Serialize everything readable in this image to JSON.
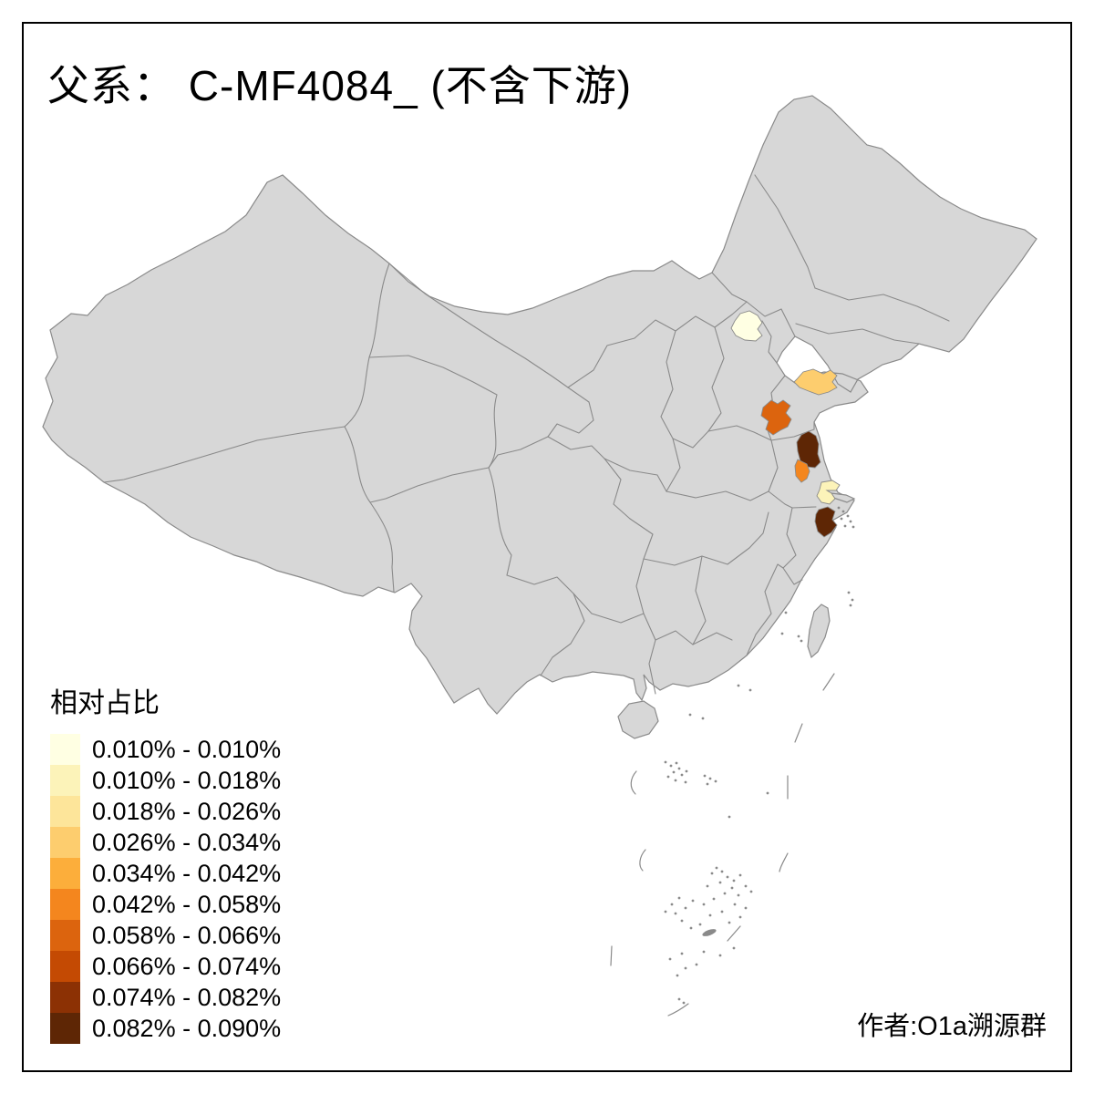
{
  "title": "父系： C-MF4084_ (不含下游)",
  "attribution": "作者:O1a溯源群",
  "legend": {
    "title": "相对占比",
    "items": [
      {
        "range": "0.010% - 0.010%",
        "color": "#FFFFE3"
      },
      {
        "range": "0.010% - 0.018%",
        "color": "#FCF3B9"
      },
      {
        "range": "0.018% - 0.026%",
        "color": "#FDE59A"
      },
      {
        "range": "0.026% - 0.034%",
        "color": "#FDCD6E"
      },
      {
        "range": "0.034% - 0.042%",
        "color": "#FCAE3B"
      },
      {
        "range": "0.042% - 0.058%",
        "color": "#F4861E"
      },
      {
        "range": "0.058% - 0.066%",
        "color": "#DC640E"
      },
      {
        "range": "0.066% - 0.074%",
        "color": "#C44A03"
      },
      {
        "range": "0.074% - 0.082%",
        "color": "#8C3104"
      },
      {
        "range": "0.082% - 0.090%",
        "color": "#5E2605"
      }
    ]
  },
  "map": {
    "base_fill": "#D7D7D7",
    "border_color": "#8A8A8A",
    "background": "#FFFFFF",
    "regions": [
      {
        "id": "beijing",
        "level": 1
      },
      {
        "id": "shandong-peninsula",
        "level": 4
      },
      {
        "id": "shandong-west",
        "level": 7
      },
      {
        "id": "jiangsu-north",
        "level": 10
      },
      {
        "id": "jiangsu-central",
        "level": 6
      },
      {
        "id": "yangtze-delta",
        "level": 2
      },
      {
        "id": "zhejiang-north",
        "level": 10
      }
    ]
  },
  "chart_data": {
    "type": "choropleth-map",
    "title": "父系： C-MF4084_ (不含下游)",
    "legend_title": "相对占比",
    "bins": [
      "0.010% - 0.010%",
      "0.010% - 0.018%",
      "0.018% - 0.026%",
      "0.026% - 0.034%",
      "0.034% - 0.042%",
      "0.042% - 0.058%",
      "0.058% - 0.066%",
      "0.066% - 0.074%",
      "0.074% - 0.082%",
      "0.082% - 0.090%"
    ],
    "palette": [
      "#FFFFE3",
      "#FCF3B9",
      "#FDE59A",
      "#FDCD6E",
      "#FCAE3B",
      "#F4861E",
      "#DC640E",
      "#C44A03",
      "#8C3104",
      "#5E2605"
    ],
    "highlighted_regions": [
      {
        "region": "beijing",
        "bin_index": 0
      },
      {
        "region": "shandong-peninsula",
        "bin_index": 3
      },
      {
        "region": "shandong-west",
        "bin_index": 6
      },
      {
        "region": "jiangsu-north",
        "bin_index": 9
      },
      {
        "region": "jiangsu-central",
        "bin_index": 5
      },
      {
        "region": "yangtze-delta",
        "bin_index": 1
      },
      {
        "region": "zhejiang-north",
        "bin_index": 9
      }
    ],
    "legend_position": "bottom-left"
  }
}
